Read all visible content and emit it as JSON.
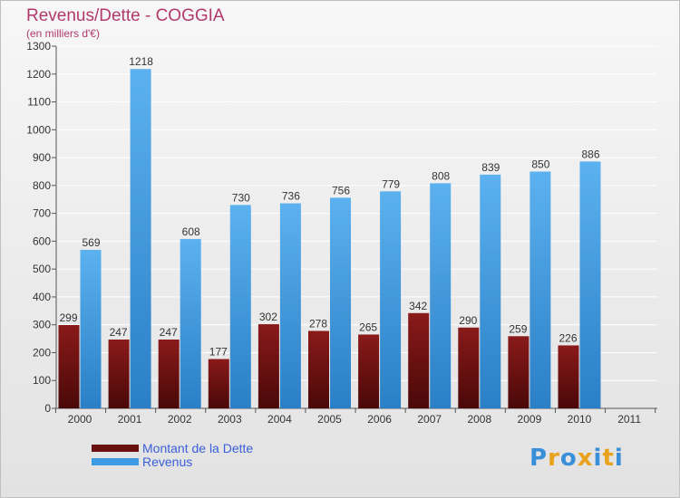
{
  "title": "Revenus/Dette - COGGIA",
  "subtitle": "(en milliers d'€)",
  "colors": {
    "title": "#b13a6b",
    "dette": "#7a1414",
    "revenus": "#3d9be3",
    "legend_text": "#3a5fd9"
  },
  "legend": [
    {
      "label": "Montant de la Dette",
      "color": "#6a0f0f"
    },
    {
      "label": "Revenus",
      "color": "#3d9be3"
    }
  ],
  "logo": {
    "letters": [
      "P",
      "r",
      "o",
      "x",
      "i",
      "t",
      "i"
    ],
    "colors": [
      "#3a8fd9",
      "#e8a21c",
      "#3a8fd9",
      "#e8a21c",
      "#3a8fd9",
      "#e8a21c",
      "#3a8fd9"
    ]
  },
  "chart_data": {
    "type": "bar",
    "title": "Revenus/Dette - COGGIA",
    "ylabel": "(en milliers d'€)",
    "xlabel": "",
    "ylim": [
      0,
      1300
    ],
    "yticks": [
      0,
      100,
      200,
      300,
      400,
      500,
      600,
      700,
      800,
      900,
      1000,
      1100,
      1200,
      1300
    ],
    "grid": true,
    "categories": [
      "2000",
      "2001",
      "2002",
      "2003",
      "2004",
      "2005",
      "2006",
      "2007",
      "2008",
      "2009",
      "2010",
      "2011"
    ],
    "series": [
      {
        "name": "Montant de la Dette",
        "values": [
          299,
          247,
          247,
          177,
          302,
          278,
          265,
          342,
          290,
          259,
          226,
          null
        ]
      },
      {
        "name": "Revenus",
        "values": [
          569,
          1218,
          608,
          730,
          736,
          756,
          779,
          808,
          839,
          850,
          886,
          null
        ]
      }
    ]
  }
}
